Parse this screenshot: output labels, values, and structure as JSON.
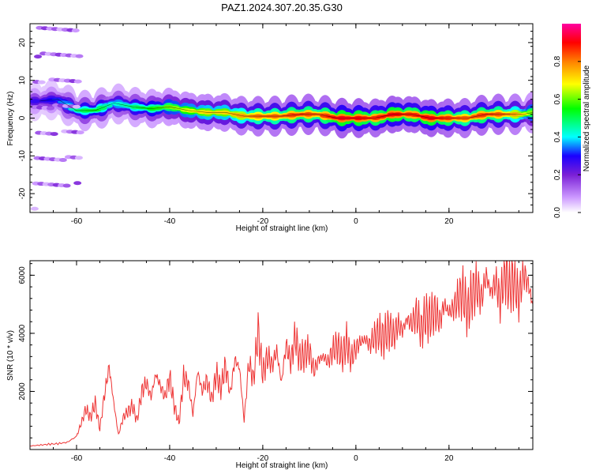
{
  "page_title": "PAZ1.2024.307.20.35.G30",
  "chart_data": [
    {
      "type": "heatmap",
      "xlabel": "Height of straight line (km)",
      "ylabel": "Frequency (Hz)",
      "xlim": [
        -70,
        38
      ],
      "ylim": [
        -25,
        25
      ],
      "xticks": [
        -60,
        -40,
        -20,
        0,
        20
      ],
      "yticks": [
        -20,
        -10,
        0,
        10,
        20
      ],
      "grid": false,
      "colorbar": {
        "label": "Normalized spectral amplitude",
        "range": [
          0,
          1
        ],
        "ticks": [
          0.0,
          0.2,
          0.4,
          0.6,
          0.8
        ],
        "colors": [
          "#ffffff",
          "#cc99ff",
          "#7a1fd6",
          "#1a00ff",
          "#00ffff",
          "#00ff00",
          "#ffff00",
          "#ff8000",
          "#ff0000",
          "#ff00a0"
        ]
      },
      "ridge": {
        "x": [
          -68,
          -64,
          -60,
          -56,
          -52,
          -48,
          -44,
          -40,
          -36,
          -32,
          -28,
          -24,
          -20,
          -16,
          -12,
          -8,
          -4,
          0,
          4,
          8,
          12,
          16,
          20,
          24,
          28,
          32,
          36,
          38
        ],
        "y": [
          4.5,
          5,
          2,
          2,
          4,
          3,
          2.5,
          3,
          2,
          1.5,
          1.5,
          0.5,
          0.5,
          0.5,
          1,
          1,
          0,
          0,
          0,
          1,
          1,
          0,
          0,
          0,
          1,
          1,
          1,
          1.5
        ],
        "amplitude": [
          0.3,
          0.35,
          0.5,
          0.55,
          0.45,
          0.5,
          0.55,
          0.6,
          0.65,
          0.7,
          0.7,
          0.75,
          0.8,
          0.8,
          0.85,
          0.8,
          0.9,
          0.9,
          0.85,
          0.9,
          0.85,
          0.9,
          0.85,
          0.8,
          0.85,
          0.8,
          0.7,
          0.6
        ]
      }
    },
    {
      "type": "line",
      "xlabel": "Height of straight line (km)",
      "ylabel": "SNR (10 * v/v)",
      "xlim": [
        -70,
        38
      ],
      "ylim": [
        0,
        6500
      ],
      "xticks": [
        -60,
        -40,
        -20,
        0,
        20
      ],
      "yticks": [
        2000,
        4000,
        6000
      ],
      "grid": false,
      "line_color": "#ee3333",
      "x": [
        -70,
        -68,
        -66,
        -64,
        -62,
        -60,
        -59,
        -58,
        -57,
        -56,
        -55,
        -54,
        -53,
        -52,
        -51,
        -50,
        -49,
        -48,
        -47,
        -46,
        -45,
        -44,
        -43,
        -42,
        -41,
        -40,
        -39,
        -38,
        -37,
        -36,
        -35,
        -34,
        -33,
        -32,
        -31,
        -30,
        -29,
        -28,
        -27,
        -26,
        -25,
        -24,
        -23,
        -22,
        -21,
        -20,
        -19,
        -18,
        -17,
        -16,
        -15,
        -14,
        -13,
        -12,
        -11,
        -10,
        -9,
        -8,
        -7,
        -6,
        -5,
        -4,
        -3,
        -2,
        -1,
        0,
        1,
        2,
        3,
        4,
        5,
        6,
        7,
        8,
        9,
        10,
        11,
        12,
        13,
        14,
        15,
        16,
        17,
        18,
        19,
        20,
        21,
        22,
        23,
        24,
        25,
        26,
        27,
        28,
        29,
        30,
        31,
        32,
        33,
        34,
        35,
        36,
        37,
        38
      ],
      "y": [
        120,
        150,
        180,
        200,
        250,
        450,
        900,
        1400,
        1100,
        1600,
        700,
        1900,
        2850,
        1600,
        500,
        1100,
        1300,
        1500,
        1000,
        2000,
        2300,
        1800,
        2600,
        2200,
        1800,
        2500,
        1500,
        900,
        2500,
        2300,
        1200,
        2700,
        2000,
        2400,
        1700,
        2600,
        2100,
        2900,
        1900,
        3100,
        2800,
        1000,
        3000,
        2400,
        4100,
        2600,
        3200,
        2900,
        3400,
        2300,
        3600,
        3000,
        3900,
        3100,
        3300,
        3400,
        2700,
        3100,
        3200,
        3000,
        3400,
        3600,
        3200,
        3700,
        3100,
        3500,
        3700,
        3800,
        3600,
        3900,
        4000,
        3800,
        4200,
        3900,
        4300,
        4100,
        4500,
        4300,
        4700,
        4100,
        4600,
        4500,
        4800,
        4400,
        5000,
        4700,
        4900,
        5200,
        5400,
        4700,
        5400,
        5600,
        5200,
        6000,
        5400,
        5800,
        5100,
        6200,
        5600,
        5900,
        5200,
        6100,
        5700,
        5000
      ]
    }
  ]
}
